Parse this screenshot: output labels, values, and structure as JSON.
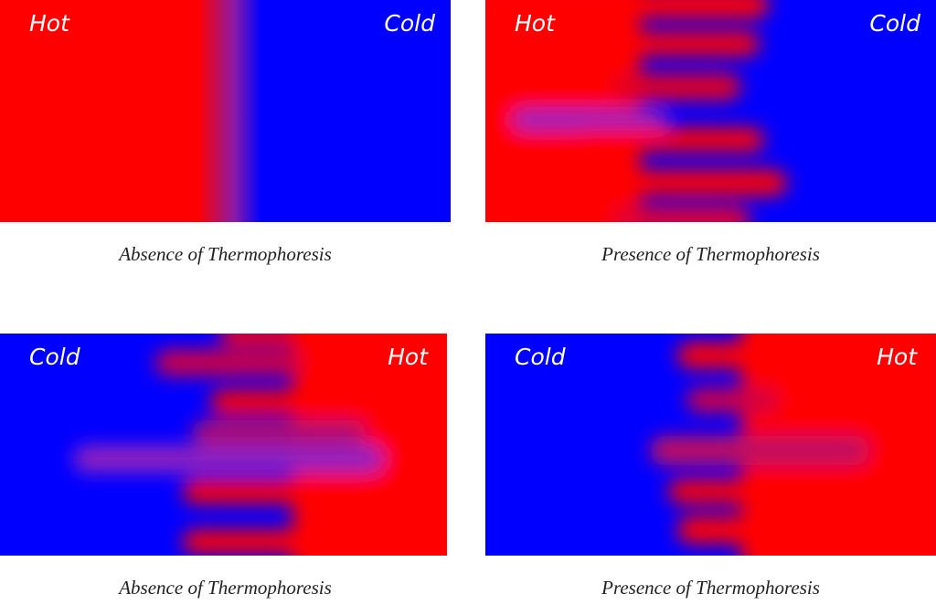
{
  "panels": [
    {
      "left_label": "Hot",
      "right_label": "Cold",
      "caption": "Absence of Thermophoresis"
    },
    {
      "left_label": "Hot",
      "right_label": "Cold",
      "caption": "Presence of Thermophoresis"
    },
    {
      "left_label": "Cold",
      "right_label": "Hot",
      "caption": "Absence of Thermophoresis"
    },
    {
      "left_label": "Cold",
      "right_label": "Hot",
      "caption": "Presence of Thermophoresis"
    }
  ]
}
